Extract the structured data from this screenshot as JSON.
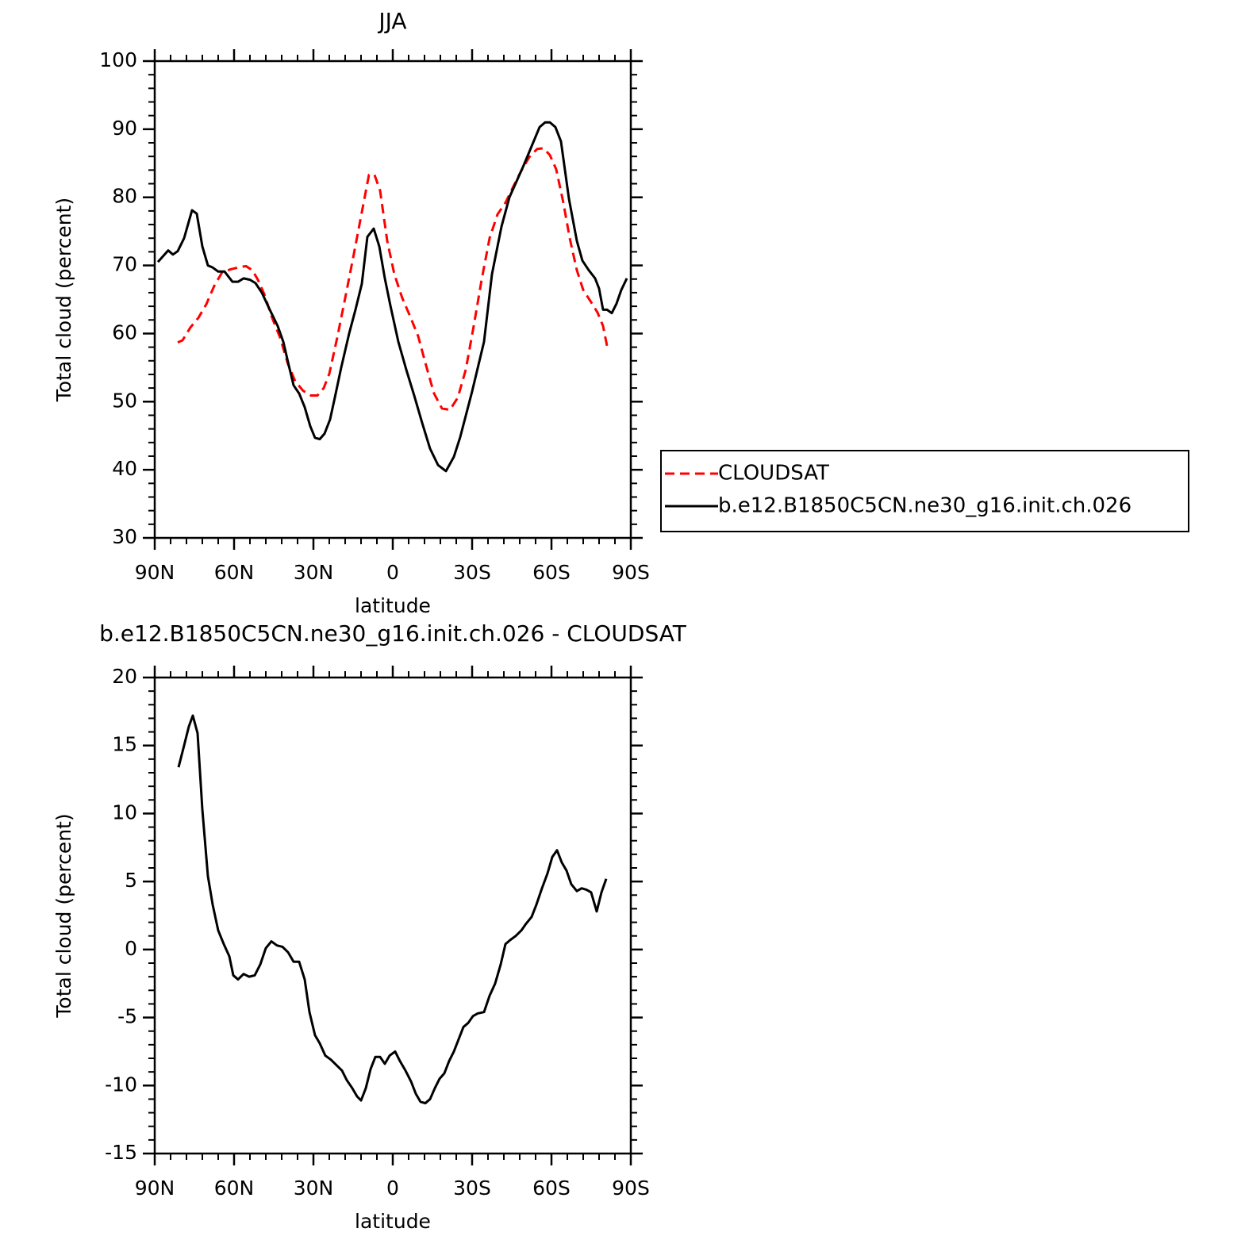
{
  "chart_data": [
    {
      "type": "line",
      "title": "JJA",
      "x_label": "latitude",
      "y_label": "Total cloud (percent)",
      "xlim": [
        90,
        -90
      ],
      "xticks": [
        {
          "value": 90,
          "label": "90N"
        },
        {
          "value": 60,
          "label": "60N"
        },
        {
          "value": 30,
          "label": "30N"
        },
        0,
        {
          "value": -30,
          "label": "30S"
        },
        {
          "value": -60,
          "label": "60S"
        },
        {
          "value": -90,
          "label": "90S"
        }
      ],
      "ylim": [
        30,
        100
      ],
      "yticks": [
        30,
        40,
        50,
        60,
        70,
        80,
        90,
        100
      ],
      "legend": "lower right outside",
      "series": [
        {
          "name": "CLOUDSAT",
          "color": "#ff0000",
          "style": "dashed",
          "x": [
            81.3,
            79.5,
            76.5,
            73.5,
            70.5,
            67.5,
            64.5,
            61.5,
            58.5,
            55.5,
            53.1,
            51,
            48.6,
            45.6,
            42.6,
            39.6,
            36.9,
            33.9,
            30.9,
            28.5,
            26.1,
            24,
            21,
            18,
            15,
            12,
            9,
            6.9,
            4.8,
            2.1,
            -0.6,
            -3.6,
            -6.6,
            -9.6,
            -12.6,
            -15.6,
            -18.6,
            -21.6,
            -24.6,
            -27.6,
            -30.6,
            -33.6,
            -36.6,
            -39.6,
            -42.6,
            -45.6,
            -48.6,
            -51.6,
            -54.6,
            -57,
            -59.4,
            -61.8,
            -64.5,
            -66.9,
            -69.6,
            -72,
            -75,
            -77.4,
            -79.5,
            -81
          ],
          "values": [
            58.7,
            59,
            60.9,
            62.3,
            64.3,
            67,
            69,
            69.4,
            69.7,
            69.9,
            69.3,
            67.9,
            65.8,
            62.3,
            59.4,
            55.5,
            53,
            51.6,
            50.9,
            50.9,
            52,
            54.1,
            59.4,
            65.2,
            71.1,
            77.2,
            83.3,
            83.3,
            81,
            73.6,
            68.7,
            65.2,
            62.5,
            59.6,
            55.3,
            51.2,
            49,
            48.8,
            50.6,
            54.7,
            61.1,
            67.9,
            74,
            77.5,
            79.2,
            81.6,
            83.9,
            85.9,
            87.1,
            87.2,
            86.2,
            84.1,
            79.2,
            74,
            69.3,
            66.4,
            64.6,
            63.1,
            61.1,
            58.2
          ]
        },
        {
          "name": "b.e12.B1850C5CN.ne30_g16.init.ch.026",
          "color": "#000000",
          "style": "solid",
          "x": [
            88.8,
            84.9,
            83.1,
            81.3,
            78.9,
            75.9,
            74.1,
            72,
            69.9,
            68.1,
            66,
            63.6,
            60.6,
            58.5,
            56.4,
            54,
            51.9,
            49.5,
            46.5,
            43.5,
            41.4,
            39.3,
            37.5,
            35.4,
            33.3,
            31.2,
            29.4,
            27.6,
            25.8,
            23.7,
            21.9,
            19.5,
            16.5,
            14.1,
            11.7,
            9.6,
            7.2,
            5.1,
            3,
            0.9,
            -2.1,
            -5.1,
            -8.1,
            -11.1,
            -14.1,
            -17.1,
            -20.1,
            -23.1,
            -25.5,
            -30,
            -34.5,
            -37.5,
            -41.1,
            -44.1,
            -49.5,
            -55.5,
            -57.6,
            -59.4,
            -61.5,
            -63.6,
            -66.6,
            -69.6,
            -71.7,
            -74.1,
            -76.5,
            -78,
            -79.5,
            -81,
            -82.8,
            -84.6,
            -86.4,
            -88.5
          ],
          "values": [
            70.5,
            72.2,
            71.6,
            72.1,
            74,
            78.1,
            77.6,
            72.8,
            70,
            69.7,
            69.1,
            69.1,
            67.6,
            67.6,
            68.1,
            67.9,
            67.4,
            66,
            63.5,
            61.1,
            58.8,
            55.3,
            52.4,
            51.2,
            49.2,
            46.4,
            44.7,
            44.5,
            45.3,
            47.4,
            50.6,
            55,
            60,
            63.5,
            67.3,
            74.2,
            75.4,
            72.8,
            68.1,
            64.1,
            58.8,
            54.7,
            50.9,
            46.9,
            43.1,
            40.7,
            39.8,
            41.9,
            44.8,
            51.5,
            58.8,
            68.7,
            75.7,
            80,
            84.7,
            90.3,
            91,
            91,
            90.3,
            88.2,
            79.8,
            73.6,
            70.7,
            69.3,
            68.1,
            66.6,
            63.5,
            63.5,
            63,
            64.4,
            66.4,
            68.1
          ]
        }
      ]
    },
    {
      "type": "line",
      "title": "b.e12.B1850C5CN.ne30_g16.init.ch.026 - CLOUDSAT",
      "x_label": "latitude",
      "y_label": "Total cloud (percent)",
      "xlim": [
        90,
        -90
      ],
      "xticks": [
        {
          "value": 90,
          "label": "90N"
        },
        {
          "value": 60,
          "label": "60N"
        },
        {
          "value": 30,
          "label": "30N"
        },
        0,
        {
          "value": -30,
          "label": "30S"
        },
        {
          "value": -60,
          "label": "60S"
        },
        {
          "value": -90,
          "label": "90S"
        }
      ],
      "ylim": [
        -15,
        20
      ],
      "yticks": [
        -15,
        -10,
        -5,
        0,
        5,
        10,
        15,
        20
      ],
      "color": "#000000",
      "x": [
        81,
        78.9,
        77.1,
        75.6,
        73.8,
        72,
        69.9,
        68.1,
        66,
        63.9,
        61.8,
        60.3,
        58.5,
        56.4,
        54.3,
        52.2,
        50.1,
        48,
        45.9,
        43.8,
        41.7,
        39.6,
        37.5,
        35.4,
        33.3,
        31.5,
        29.4,
        27.6,
        25.5,
        23.4,
        21.3,
        19.2,
        17.4,
        15.3,
        13.5,
        12,
        10.2,
        8.4,
        6.6,
        4.8,
        3,
        1.2,
        -0.9,
        -2.7,
        -4.8,
        -6.9,
        -8.7,
        -10.5,
        -12.3,
        -14.1,
        -15.9,
        -17.7,
        -19.5,
        -21.3,
        -23.1,
        -24.9,
        -26.7,
        -28.5,
        -30.3,
        -32.1,
        -34.5,
        -36.6,
        -38.7,
        -40.8,
        -42.6,
        -44.4,
        -46.5,
        -48.6,
        -50.4,
        -52.5,
        -54.3,
        -56.4,
        -58.5,
        -60.3,
        -62.1,
        -63.9,
        -65.7,
        -67.5,
        -69.6,
        -71.4,
        -73.2,
        -75,
        -77.1,
        -78.9,
        -80.7
      ],
      "values": [
        13.4,
        15,
        16.4,
        17.2,
        15.9,
        10.3,
        5.4,
        3.3,
        1.4,
        0.4,
        -0.5,
        -1.9,
        -2.2,
        -1.8,
        -2,
        -1.9,
        -1.1,
        0.1,
        0.6,
        0.3,
        0.2,
        -0.2,
        -0.9,
        -0.9,
        -2.2,
        -4.6,
        -6.3,
        -6.9,
        -7.8,
        -8.1,
        -8.5,
        -8.9,
        -9.6,
        -10.2,
        -10.8,
        -11.1,
        -10.2,
        -8.8,
        -7.9,
        -7.9,
        -8.4,
        -7.8,
        -7.5,
        -8.2,
        -8.9,
        -9.7,
        -10.6,
        -11.2,
        -11.3,
        -11,
        -10.2,
        -9.5,
        -9.1,
        -8.2,
        -7.5,
        -6.6,
        -5.7,
        -5.4,
        -4.9,
        -4.7,
        -4.6,
        -3.4,
        -2.5,
        -1.1,
        0.4,
        0.7,
        1,
        1.4,
        1.9,
        2.4,
        3.3,
        4.5,
        5.6,
        6.8,
        7.3,
        6.4,
        5.8,
        4.8,
        4.3,
        4.5,
        4.4,
        4.2,
        2.8,
        4.2,
        5.2
      ]
    }
  ]
}
